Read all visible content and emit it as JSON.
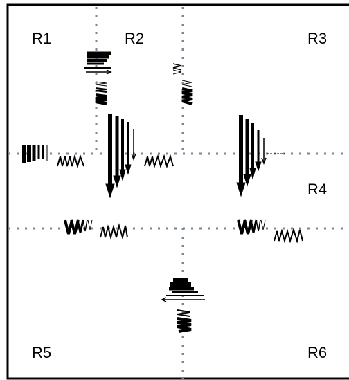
{
  "regions": [
    {
      "id": "r1",
      "label": "R1"
    },
    {
      "id": "r2",
      "label": "R2"
    },
    {
      "id": "r3",
      "label": "R3"
    },
    {
      "id": "r4",
      "label": "R4"
    },
    {
      "id": "r5",
      "label": "R5"
    },
    {
      "id": "r6",
      "label": "R6"
    }
  ],
  "colors": {
    "ink": "#000000",
    "divider": "#7a8798",
    "background": "#ffffff"
  }
}
